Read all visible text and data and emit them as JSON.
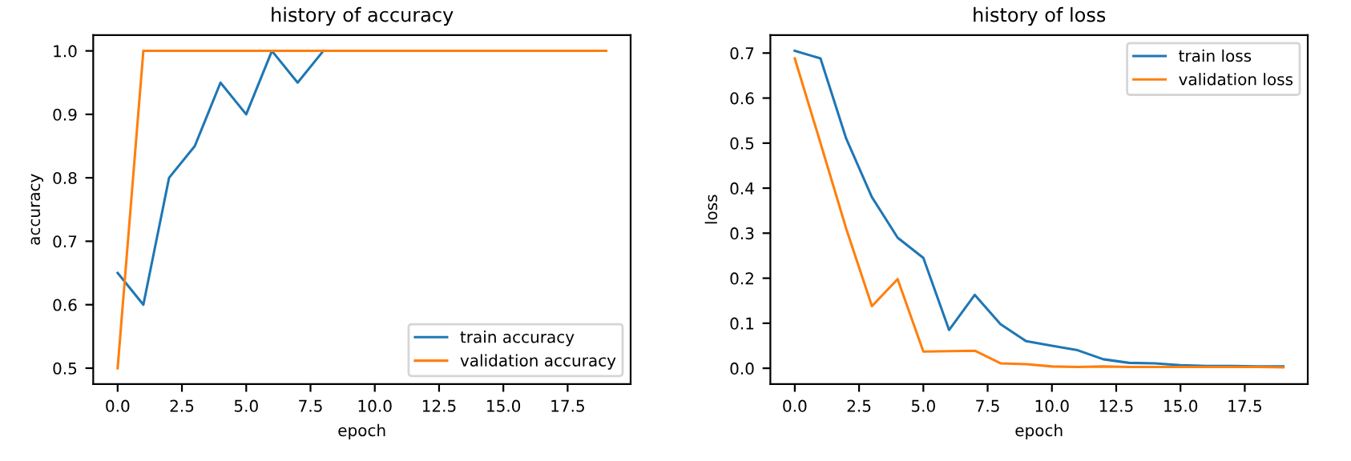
{
  "chart_data": [
    {
      "type": "line",
      "title": "history of accuracy",
      "xlabel": "epoch",
      "ylabel": "accuracy",
      "x": [
        0,
        1,
        2,
        3,
        4,
        5,
        6,
        7,
        8,
        9,
        10,
        11,
        12,
        13,
        14,
        15,
        16,
        17,
        18,
        19
      ],
      "series": [
        {
          "name": "train accuracy",
          "color": "#1f77b4",
          "values": [
            0.65,
            0.6,
            0.8,
            0.85,
            0.95,
            0.9,
            1.0,
            0.95,
            1.0,
            null,
            null,
            null,
            null,
            null,
            null,
            null,
            null,
            null,
            null,
            null
          ]
        },
        {
          "name": "validation accuracy",
          "color": "#ff7f0e",
          "values": [
            0.5,
            1.0,
            1.0,
            1.0,
            1.0,
            1.0,
            1.0,
            1.0,
            1.0,
            1.0,
            1.0,
            1.0,
            1.0,
            1.0,
            1.0,
            1.0,
            1.0,
            1.0,
            1.0,
            1.0
          ]
        }
      ],
      "xlim": [
        -0.95,
        19.95
      ],
      "xticks": [
        {
          "value": 0,
          "label": "0.0"
        },
        {
          "value": 2.5,
          "label": "2.5"
        },
        {
          "value": 5,
          "label": "5.0"
        },
        {
          "value": 7.5,
          "label": "7.5"
        },
        {
          "value": 10,
          "label": "10.0"
        },
        {
          "value": 12.5,
          "label": "12.5"
        },
        {
          "value": 15,
          "label": "15.0"
        },
        {
          "value": 17.5,
          "label": "17.5"
        }
      ],
      "ylim": [
        0.475,
        1.025
      ],
      "yticks": [
        0.5,
        0.6,
        0.7,
        0.8,
        0.9,
        {
          "value": 1,
          "label": "1.0"
        }
      ],
      "legend": "lower right",
      "grid": false
    },
    {
      "type": "line",
      "title": "history of loss",
      "xlabel": "epoch",
      "ylabel": "loss",
      "x": [
        0,
        1,
        2,
        3,
        4,
        5,
        6,
        7,
        8,
        9,
        10,
        11,
        12,
        13,
        14,
        15,
        16,
        17,
        18,
        19
      ],
      "series": [
        {
          "name": "train loss",
          "color": "#1f77b4",
          "values": [
            0.705,
            0.688,
            0.51,
            0.38,
            0.29,
            0.245,
            0.085,
            0.163,
            0.098,
            0.06,
            0.05,
            0.04,
            0.02,
            0.012,
            0.011,
            0.007,
            0.005,
            0.005,
            0.004,
            0.004
          ]
        },
        {
          "name": "validation loss",
          "color": "#ff7f0e",
          "values": [
            0.688,
            0.5,
            0.31,
            0.138,
            0.198,
            0.037,
            0.038,
            0.039,
            0.011,
            0.009,
            0.004,
            0.003,
            0.004,
            0.003,
            0.003,
            0.003,
            0.003,
            0.003,
            0.003,
            0.002
          ]
        }
      ],
      "xlim": [
        -0.95,
        19.95
      ],
      "xticks": [
        {
          "value": 0,
          "label": "0.0"
        },
        {
          "value": 2.5,
          "label": "2.5"
        },
        {
          "value": 5,
          "label": "5.0"
        },
        {
          "value": 7.5,
          "label": "7.5"
        },
        {
          "value": 10,
          "label": "10.0"
        },
        {
          "value": 12.5,
          "label": "12.5"
        },
        {
          "value": 15,
          "label": "15.0"
        },
        {
          "value": 17.5,
          "label": "17.5"
        }
      ],
      "ylim": [
        -0.035,
        0.74
      ],
      "yticks": [
        {
          "value": 0,
          "label": "0.0"
        },
        0.1,
        0.2,
        0.3,
        0.4,
        0.5,
        0.6,
        0.7
      ],
      "legend": "upper right",
      "grid": false
    }
  ]
}
